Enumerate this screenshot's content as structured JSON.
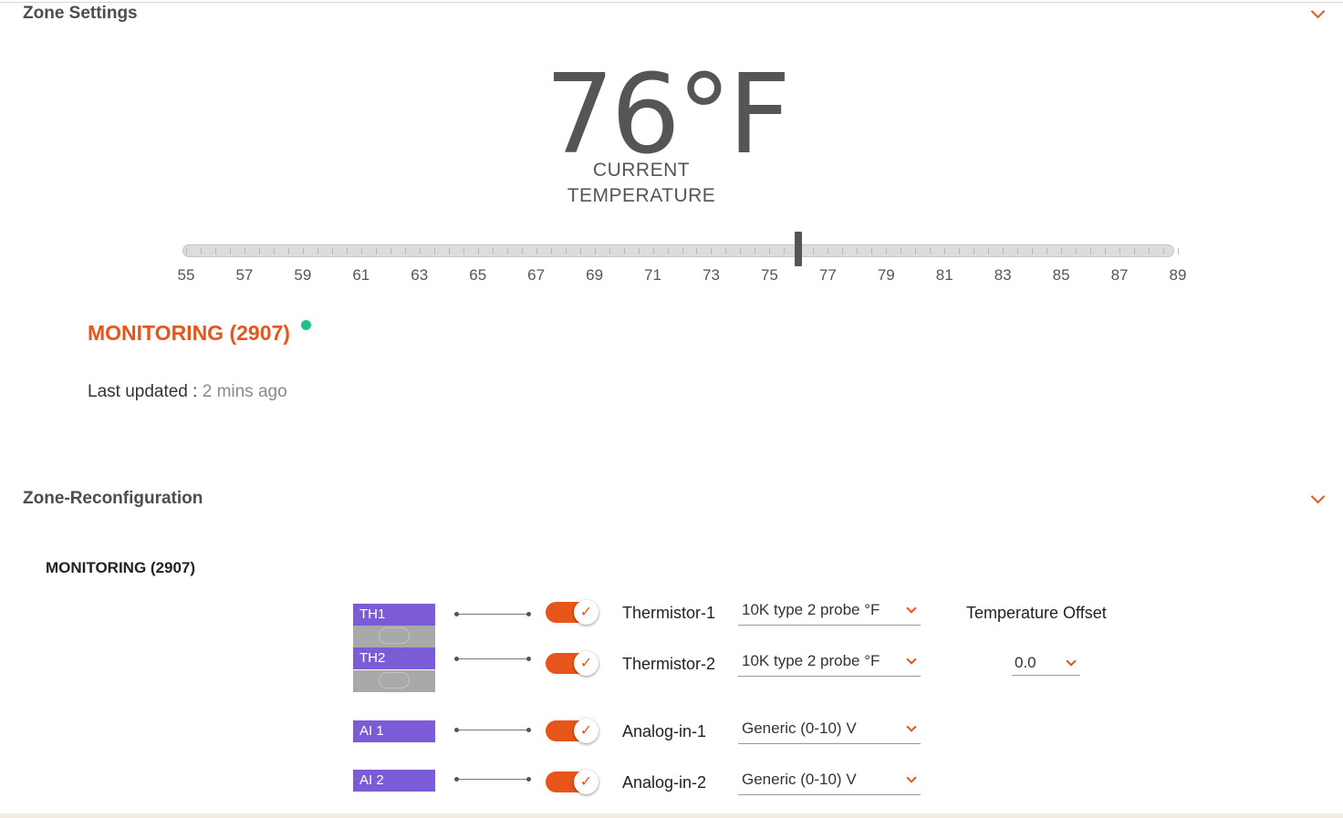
{
  "zone_settings": {
    "title": "Zone Settings",
    "current_temperature": "76°F",
    "current_label_line1": "CURRENT",
    "current_label_line2": "TEMPERATURE",
    "slider": {
      "min": 55,
      "max": 89,
      "value": 76,
      "tick_labels": [
        "55",
        "57",
        "59",
        "61",
        "63",
        "65",
        "67",
        "69",
        "71",
        "73",
        "75",
        "77",
        "79",
        "81",
        "83",
        "85",
        "87",
        "89"
      ]
    },
    "status": "MONITORING (2907)",
    "status_dot_color": "#1cc08c",
    "last_updated_label": "Last updated :",
    "last_updated_value": "2 mins ago"
  },
  "zone_reconfiguration": {
    "title": "Zone-Reconfiguration",
    "subtitle": "MONITORING (2907)",
    "temperature_offset_label": "Temperature Offset",
    "temperature_offset_value": "0.0",
    "rows": [
      {
        "port": "TH1",
        "label": "Thermistor-1",
        "value": "10K type 2 probe °F",
        "enabled": true
      },
      {
        "port": "TH2",
        "label": "Thermistor-2",
        "value": "10K type 2 probe °F",
        "enabled": true
      },
      {
        "port": "AI 1",
        "label": "Analog-in-1",
        "value": "Generic (0-10) V",
        "enabled": true
      },
      {
        "port": "AI 2",
        "label": "Analog-in-2",
        "value": "Generic (0-10) V",
        "enabled": true
      }
    ]
  },
  "colors": {
    "accent": "#e8551a",
    "port": "#7b5cd6",
    "status_dot": "#1cc08c"
  },
  "icons": {
    "collapse": "chevron-down-icon",
    "toggle_check": "checkmark-icon"
  }
}
